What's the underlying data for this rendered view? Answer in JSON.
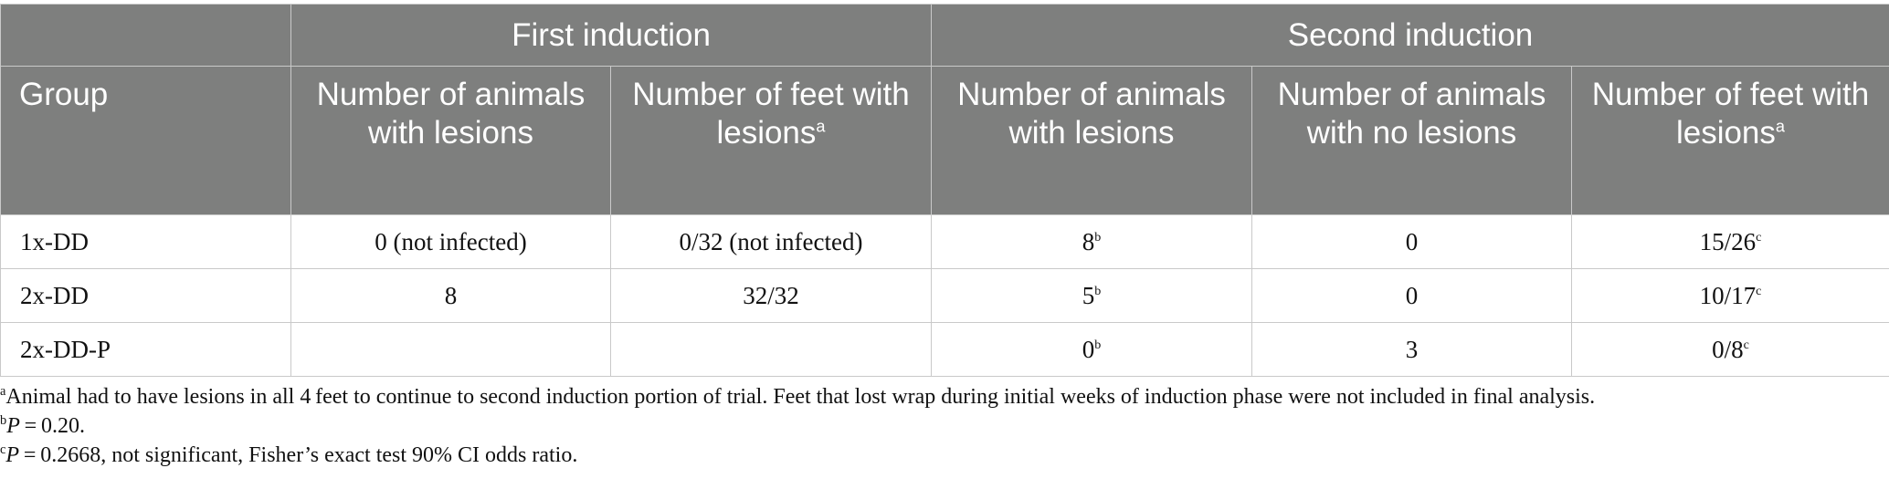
{
  "header": {
    "row1": {
      "blank": "",
      "first": "First induction",
      "second": "Second induction"
    },
    "row2": {
      "group": "Group",
      "c1": "Number of animals with lesions",
      "c2": "Number of feet with lesions",
      "c2_sup": "a",
      "c3": "Number of animals with lesions",
      "c4": "Number of animals with no lesions",
      "c5": "Number of feet with lesions",
      "c5_sup": "a"
    }
  },
  "rows": [
    {
      "group": "1x-DD",
      "c1": "0 (not infected)",
      "c2": "0/32 (not infected)",
      "c3": "8",
      "c3_sup": "b",
      "c4": "0",
      "c5": "15/26",
      "c5_sup": "c"
    },
    {
      "group": "2x-DD",
      "c1": "8",
      "c2": "32/32",
      "c3": "5",
      "c3_sup": "b",
      "c4": "0",
      "c5": "10/17",
      "c5_sup": "c"
    },
    {
      "group": "2x-DD-P",
      "c1": "",
      "c2": "",
      "c3": "0",
      "c3_sup": "b",
      "c4": "3",
      "c5": "0/8",
      "c5_sup": "c"
    }
  ],
  "footnotes": [
    {
      "mark": "a",
      "pre": "",
      "italic": "",
      "text": "Animal had to have lesions in all 4 feet to continue to second induction portion of trial. Feet that lost wrap during initial weeks of induction phase were not included in final analysis."
    },
    {
      "mark": "b",
      "pre": "",
      "italic": "P",
      "text": " = 0.20."
    },
    {
      "mark": "c",
      "pre": "",
      "italic": "P",
      "text": " = 0.2668, not significant, Fisher’s exact test 90% CI odds ratio."
    }
  ]
}
